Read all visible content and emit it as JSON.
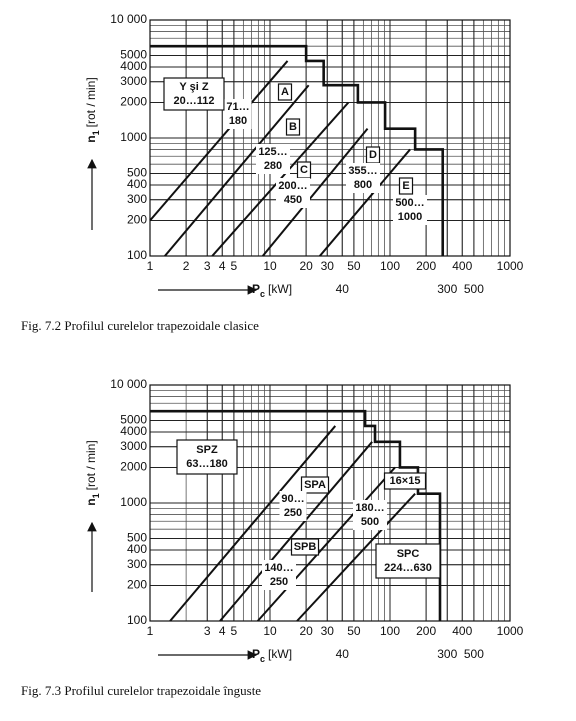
{
  "chart_data": [
    {
      "type": "line",
      "caption": "Fig. 7.2  Profilul curelelor trapezoidale clasice",
      "y_label": "n",
      "y_label_sub": "1",
      "y_label_unit": "[rot / min]",
      "x_label": "P",
      "x_label_sub": "c",
      "x_label_unit": "[kW]",
      "log_x": true,
      "log_y": true,
      "minor_grid": true,
      "xlim": [
        1,
        1000
      ],
      "ylim": [
        100,
        10000
      ],
      "xticks": [
        1,
        2,
        3,
        4,
        5,
        10,
        20,
        30,
        50,
        100,
        200,
        400,
        1000
      ],
      "xticks_second_row": [
        40,
        300,
        500
      ],
      "yticks": [
        100,
        200,
        300,
        400,
        500,
        1000,
        2000,
        3000,
        4000,
        5000,
        {
          "value": 10000,
          "label": "10 000"
        }
      ],
      "lines": [
        {
          "x": [
            1,
            14
          ],
          "y": [
            200,
            4500
          ]
        },
        {
          "x": [
            1.33,
            21
          ],
          "y": [
            100,
            2800
          ]
        },
        {
          "x": [
            3.3,
            45
          ],
          "y": [
            100,
            2000
          ]
        },
        {
          "x": [
            8.7,
            65
          ],
          "y": [
            100,
            1200
          ]
        },
        {
          "x": [
            26,
            147
          ],
          "y": [
            100,
            800
          ]
        }
      ],
      "boundary": {
        "x": [
          1,
          20,
          20,
          28,
          28,
          54,
          54,
          91,
          91,
          162,
          162,
          275,
          275
        ],
        "y": [
          6000,
          6000,
          4500,
          4500,
          2800,
          2800,
          2000,
          2000,
          1200,
          1200,
          800,
          800,
          100
        ]
      },
      "annotations": [
        {
          "lines": [
            "Y şi Z",
            "20…112"
          ],
          "boxed": true
        },
        {
          "lines": [
            "A"
          ],
          "boxed": true
        },
        {
          "lines": [
            "71…",
            "180"
          ],
          "boxed": false
        },
        {
          "lines": [
            "B"
          ],
          "boxed": true
        },
        {
          "lines": [
            "125…",
            "280"
          ],
          "boxed": false
        },
        {
          "lines": [
            "C"
          ],
          "boxed": true
        },
        {
          "lines": [
            "200…",
            "450"
          ],
          "boxed": false
        },
        {
          "lines": [
            "D"
          ],
          "boxed": true
        },
        {
          "lines": [
            "355…",
            "800"
          ],
          "boxed": false
        },
        {
          "lines": [
            "E"
          ],
          "boxed": true
        },
        {
          "lines": [
            "500…",
            "1000"
          ],
          "boxed": false
        }
      ]
    },
    {
      "type": "line",
      "caption": "Fig. 7.3  Profilul curelelor trapezoidale înguste",
      "y_label": "n",
      "y_label_sub": "1",
      "y_label_unit": "[rot / min]",
      "x_label": "P",
      "x_label_sub": "c",
      "x_label_unit": "[kW]",
      "log_x": true,
      "log_y": true,
      "minor_grid": true,
      "xlim": [
        1,
        1000
      ],
      "ylim": [
        100,
        10000
      ],
      "xticks": [
        1,
        3,
        4,
        5,
        10,
        20,
        30,
        50,
        100,
        200,
        400,
        1000
      ],
      "xticks_second_row": [
        40,
        300,
        500
      ],
      "yticks": [
        100,
        200,
        300,
        400,
        500,
        1000,
        2000,
        3000,
        4000,
        5000,
        {
          "value": 10000,
          "label": "10 000"
        }
      ],
      "lines": [
        {
          "x": [
            1.47,
            35
          ],
          "y": [
            100,
            4500
          ]
        },
        {
          "x": [
            3.83,
            71
          ],
          "y": [
            100,
            3300
          ]
        },
        {
          "x": [
            7.9,
            110
          ],
          "y": [
            100,
            2000
          ]
        },
        {
          "x": [
            16.8,
            162
          ],
          "y": [
            100,
            1200
          ]
        }
      ],
      "boundary": {
        "x": [
          1,
          62,
          62,
          75,
          75,
          121,
          121,
          171,
          171,
          261,
          261
        ],
        "y": [
          6000,
          6000,
          4500,
          4500,
          3300,
          3300,
          2000,
          2000,
          1200,
          1200,
          100
        ]
      },
      "annotations": [
        {
          "lines": [
            "SPZ",
            "63…180"
          ],
          "boxed": true
        },
        {
          "lines": [
            "SPA"
          ],
          "boxed": true
        },
        {
          "lines": [
            "90…",
            "250"
          ],
          "boxed": false
        },
        {
          "lines": [
            "SPB"
          ],
          "boxed": true
        },
        {
          "lines": [
            "140…",
            "250"
          ],
          "boxed": false
        },
        {
          "lines": [
            "16×15"
          ],
          "boxed": true
        },
        {
          "lines": [
            "180…",
            "500"
          ],
          "boxed": false
        },
        {
          "lines": [
            "SPC",
            "224…630"
          ],
          "boxed": true
        }
      ]
    }
  ]
}
